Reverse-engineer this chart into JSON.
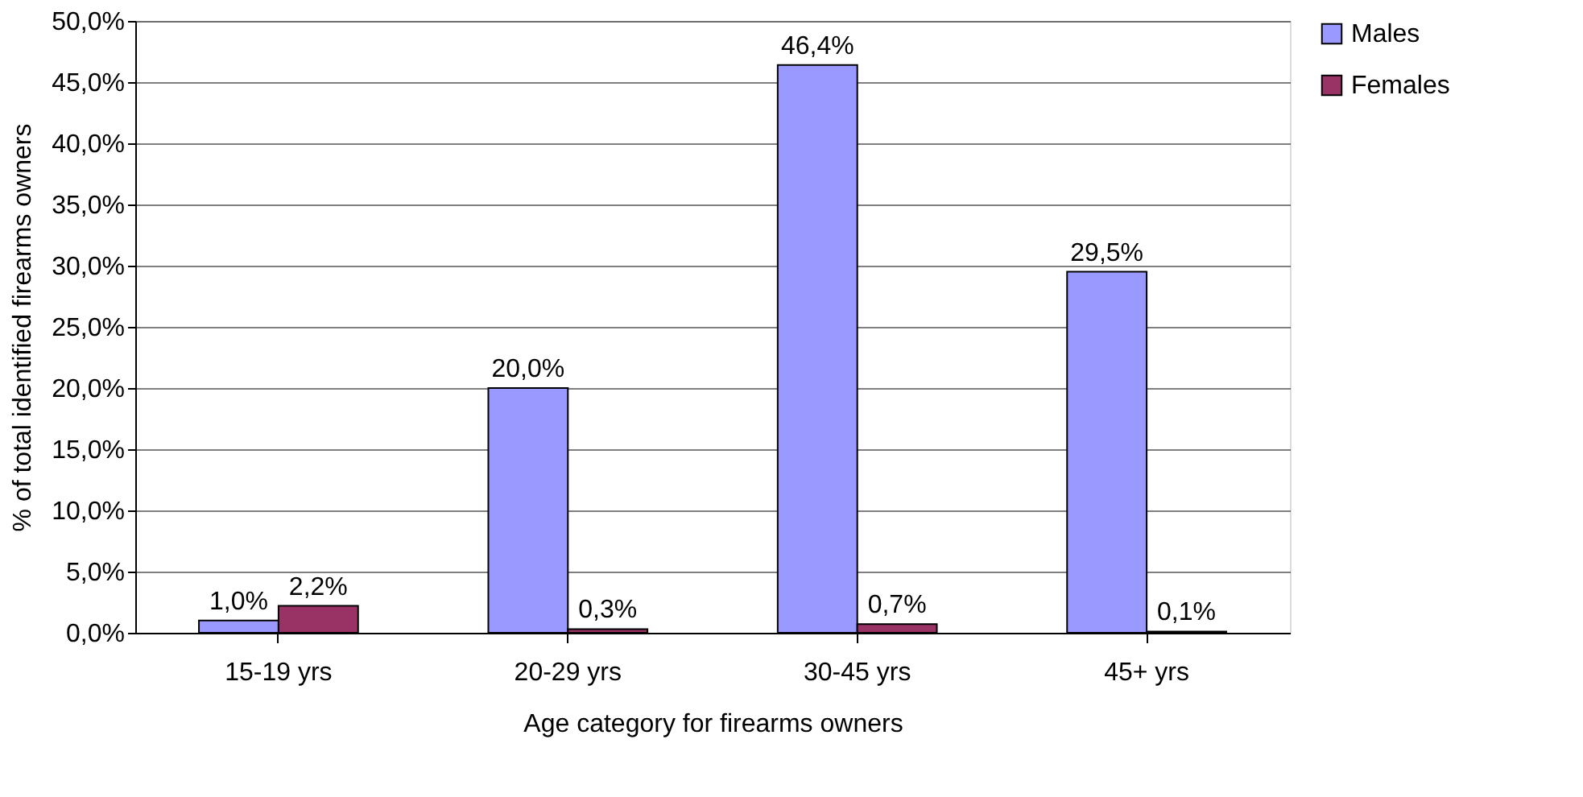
{
  "chart_data": {
    "type": "bar",
    "xlabel": "Age category for firearms owners",
    "ylabel": "% of total identified firearms owners",
    "categories": [
      "15-19 yrs",
      "20-29 yrs",
      "30-45 yrs",
      "45+ yrs"
    ],
    "series": [
      {
        "name": "Males",
        "color": "#9999ff",
        "values": [
          1.0,
          20.0,
          46.4,
          29.5
        ],
        "value_labels": [
          "1,0%",
          "20,0%",
          "46,4%",
          "29,5%"
        ]
      },
      {
        "name": "Females",
        "color": "#993366",
        "values": [
          2.2,
          0.3,
          0.7,
          0.1
        ],
        "value_labels": [
          "2,2%",
          "0,3%",
          "0,7%",
          "0,1%"
        ]
      }
    ],
    "ylim": [
      0,
      50
    ],
    "yticks": [
      {
        "value": 0,
        "label": "0,0%"
      },
      {
        "value": 5,
        "label": "5,0%"
      },
      {
        "value": 10,
        "label": "10,0%"
      },
      {
        "value": 15,
        "label": "15,0%"
      },
      {
        "value": 20,
        "label": "20,0%"
      },
      {
        "value": 25,
        "label": "25,0%"
      },
      {
        "value": 30,
        "label": "30,0%"
      },
      {
        "value": 35,
        "label": "35,0%"
      },
      {
        "value": 40,
        "label": "40,0%"
      },
      {
        "value": 45,
        "label": "45,0%"
      },
      {
        "value": 50,
        "label": "50,0%"
      }
    ],
    "grid": "y",
    "legend": "right"
  }
}
